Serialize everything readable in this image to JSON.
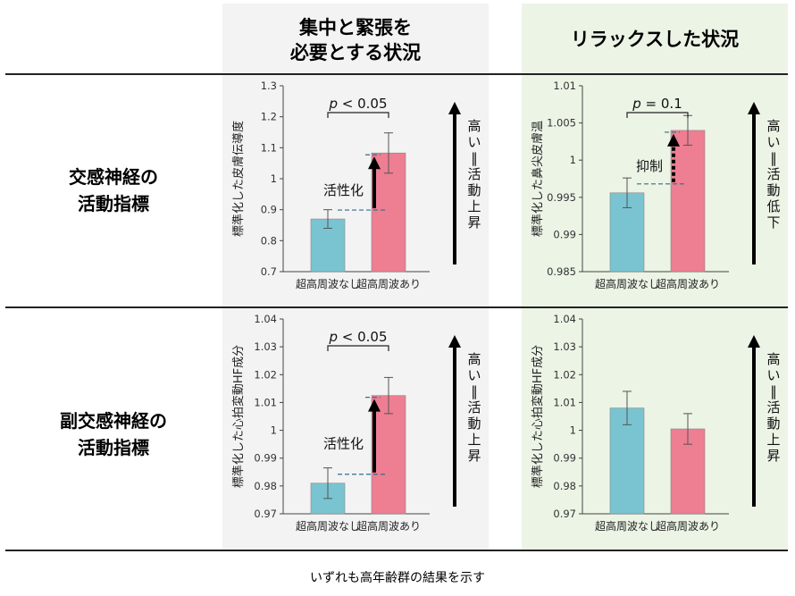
{
  "colors": {
    "bar_without": "#79c4d0",
    "bar_with": "#ee7e92",
    "stressed_panel_bg": "#f3f3f3",
    "relaxed_panel_bg": "#ecf4e6",
    "dashed_line": "#2f6e8f"
  },
  "headers": {
    "stressed": "集中と緊張を\n必要とする状況",
    "relaxed": "リラックスした状況"
  },
  "rows": {
    "sympathetic": "交感神経の\n活動指標",
    "parasympathetic": "副交感神経の\n活動指標"
  },
  "footnote": "いずれも高年齢群の結果を示す",
  "chart_data": [
    {
      "id": "sympathetic_stressed",
      "type": "bar",
      "categories": [
        "超高周波なし",
        "超高周波あり"
      ],
      "values": [
        0.87,
        1.083
      ],
      "error": [
        0.03,
        0.065
      ],
      "ylabel": "標準化した皮膚伝導度",
      "ylim": [
        0.7,
        1.3
      ],
      "yticks": [
        "0.7",
        "0.8",
        "0.9",
        "1",
        "1.1",
        "1.2",
        "1.3"
      ],
      "yvalues": [
        0.7,
        0.8,
        0.9,
        1.0,
        1.1,
        1.2,
        1.3
      ],
      "significance": {
        "p": "p",
        "rest": " < 0.05"
      },
      "effect_label": "活性化",
      "effect_arrow": "up-solid",
      "side_arrow": "up",
      "side_text": "高い＝活動上昇"
    },
    {
      "id": "sympathetic_relaxed",
      "type": "bar",
      "categories": [
        "超高周波なし",
        "超高周波あり"
      ],
      "values": [
        0.9956,
        1.004
      ],
      "error": [
        0.002,
        0.002
      ],
      "ylabel": "標準化した鼻尖皮膚温",
      "ylim": [
        0.985,
        1.01
      ],
      "yticks": [
        "0.985",
        "0.99",
        "0.995",
        "1",
        "1.005",
        "1.01"
      ],
      "yvalues": [
        0.985,
        0.99,
        0.995,
        1.0,
        1.005,
        1.01
      ],
      "significance": {
        "p": "p",
        "rest": " = 0.1"
      },
      "effect_label": "抑制",
      "effect_arrow": "up-dotted",
      "side_arrow": "up",
      "side_text": "高い＝活動低下"
    },
    {
      "id": "parasympathetic_stressed",
      "type": "bar",
      "categories": [
        "超高周波なし",
        "超高周波あり"
      ],
      "values": [
        0.981,
        1.0125
      ],
      "error": [
        0.0055,
        0.0065
      ],
      "ylabel": "標準化した心拍変動HF成分",
      "ylim": [
        0.97,
        1.04
      ],
      "yticks": [
        "0.97",
        "0.98",
        "0.99",
        "1",
        "1.01",
        "1.02",
        "1.03",
        "1.04"
      ],
      "yvalues": [
        0.97,
        0.98,
        0.99,
        1.0,
        1.01,
        1.02,
        1.03,
        1.04
      ],
      "significance": {
        "p": "p",
        "rest": " < 0.05"
      },
      "effect_label": "活性化",
      "effect_arrow": "up-solid",
      "side_arrow": "up",
      "side_text": "高い＝活動上昇"
    },
    {
      "id": "parasympathetic_relaxed",
      "type": "bar",
      "categories": [
        "超高周波なし",
        "超高周波あり"
      ],
      "values": [
        1.008,
        1.0005
      ],
      "error": [
        0.006,
        0.0055
      ],
      "ylabel": "標準化した心拍変動HF成分",
      "ylim": [
        0.97,
        1.04
      ],
      "yticks": [
        "0.97",
        "0.98",
        "0.99",
        "1",
        "1.01",
        "1.02",
        "1.03",
        "1.04"
      ],
      "yvalues": [
        0.97,
        0.98,
        0.99,
        1.0,
        1.01,
        1.02,
        1.03,
        1.04
      ],
      "significance": null,
      "effect_label": null,
      "effect_arrow": null,
      "side_arrow": "up",
      "side_text": "高い＝活動上昇"
    }
  ]
}
